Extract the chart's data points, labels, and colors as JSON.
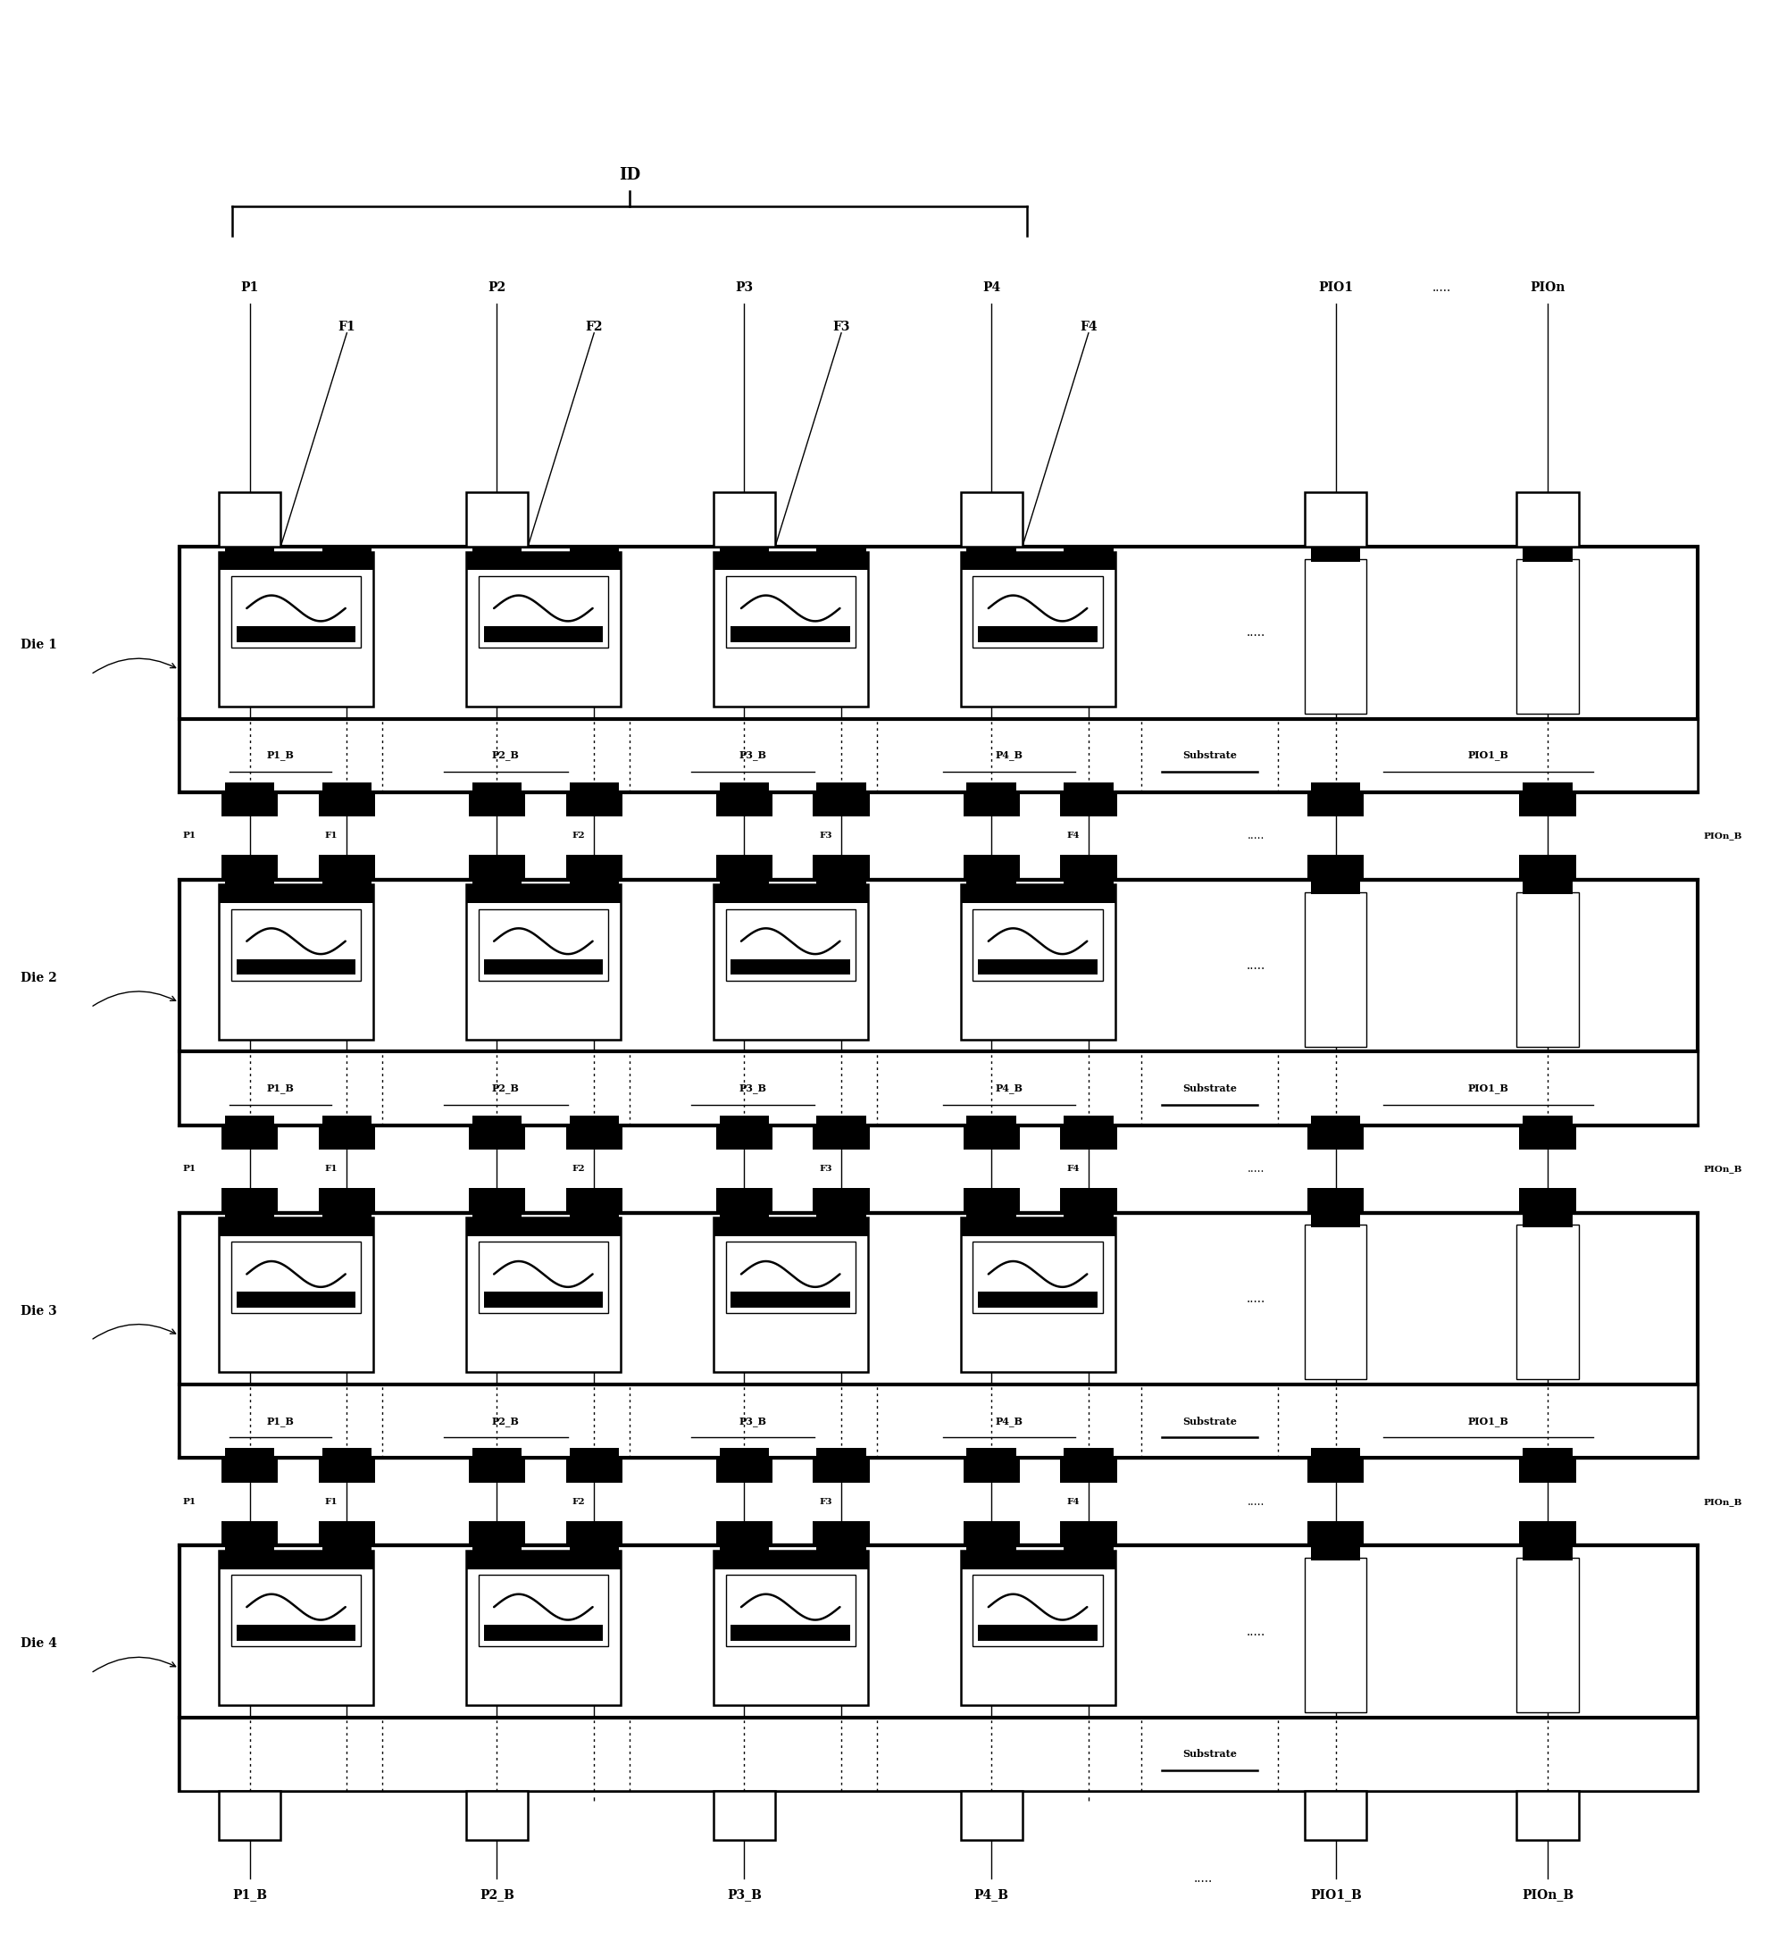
{
  "fig_width": 19.83,
  "fig_height": 21.82,
  "bg_color": "#ffffff",
  "die_labels": [
    "Die 1",
    "Die 2",
    "Die 3",
    "Die 4"
  ],
  "id_label": "ID",
  "substrate_label": "Substrate",
  "top_pad_labels": [
    "P1",
    "F1",
    "P2",
    "F2",
    "P3",
    "F3",
    "P4",
    "F4",
    "PIO1",
    "PIOn"
  ],
  "bottom_labels": [
    "P1_B",
    "P2_B",
    "P3_B",
    "P4_B",
    "PIO1_B",
    "PIOn_B"
  ],
  "section_labels_die123": [
    "P1_B",
    "P2_B",
    "P3_B",
    "P4_B",
    "Substrate",
    "PIO1_B"
  ],
  "inter_row_labels_left": [
    "P1",
    "F1",
    "F2",
    "F3",
    "F4"
  ],
  "inter_row_label_right": "PIOn_B"
}
